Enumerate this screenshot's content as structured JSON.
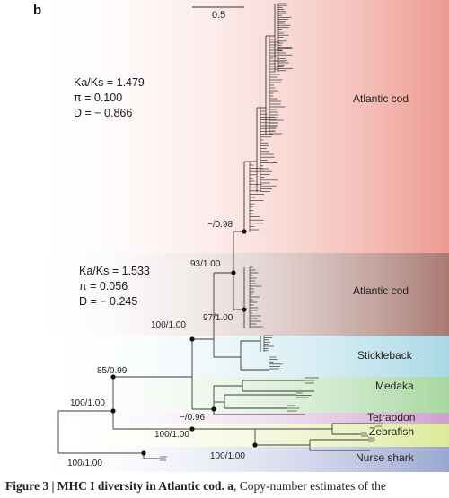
{
  "panel_label": "b",
  "scale_bar": "0.5",
  "stats_upper": {
    "ka_ks": "Ka/Ks = 1.479",
    "pi": "π = 0.100",
    "d": "D = − 0.866"
  },
  "stats_lower": {
    "ka_ks": "Ka/Ks = 1.533",
    "pi": "π = 0.056",
    "d": "D = − 0.245"
  },
  "clades": [
    "Atlantic cod",
    "Atlantic cod",
    "Stickleback",
    "Medaka",
    "Tetraodon",
    "Zebrafish",
    "Nurse shark"
  ],
  "supports": [
    "−/0.98",
    "93/1.00",
    "97/1.00",
    "100/1.00",
    "85/0.99",
    "100/1.00",
    "−/0.96",
    "100/1.00",
    "100/1.00",
    "100/1.00"
  ],
  "band_colors": {
    "cod_upper": "#ee9a90",
    "cod_lower": "#a87a72",
    "stickleback": "#a9d8e6",
    "medaka": "#a7d7a0",
    "tetraodon": "#cf9fcd",
    "zebrafish": "#dde99a",
    "nurse_shark": "#9aa6d2"
  },
  "caption": {
    "bold": "Figure 3 | MHC I diversity in Atlantic cod.",
    "bold_a": "a",
    "rest": ", Copy-number estimates of the"
  }
}
